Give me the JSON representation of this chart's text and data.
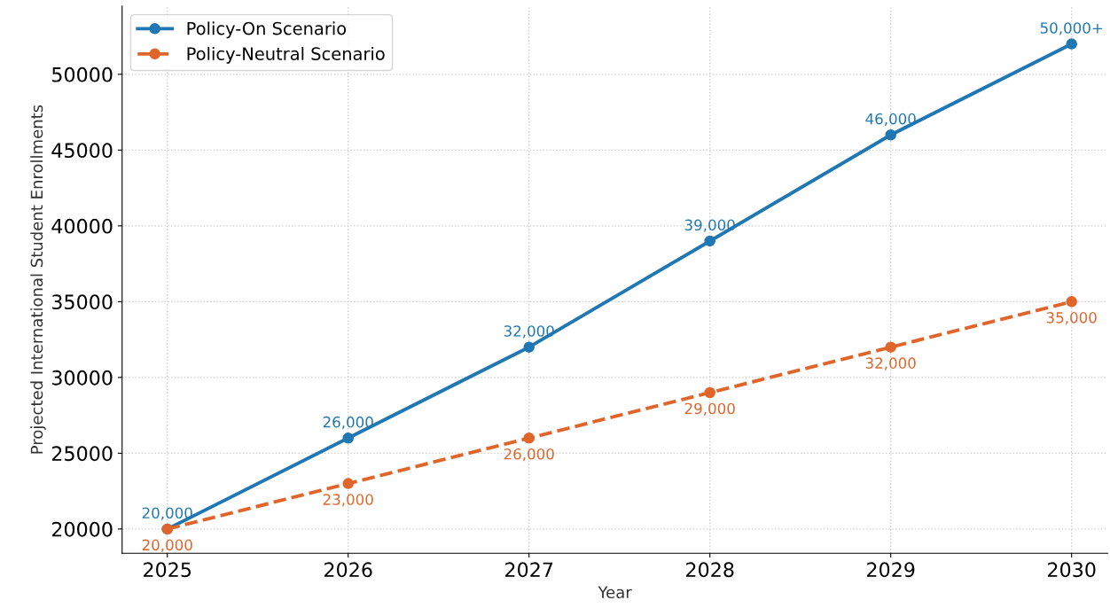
{
  "chart_data": {
    "type": "line",
    "xlabel": "Year",
    "ylabel": "Projected International Student Enrollments",
    "x": [
      2025,
      2026,
      2027,
      2028,
      2029,
      2030
    ],
    "series": [
      {
        "name": "Policy-On Scenario",
        "color": "#1f77b4",
        "values": [
          20000,
          26000,
          32000,
          39000,
          46000,
          52000
        ],
        "value_labels": [
          "20,000",
          "26,000",
          "32,000",
          "39,000",
          "46,000",
          "50,000+"
        ],
        "line_style": "solid"
      },
      {
        "name": "Policy-Neutral Scenario",
        "color": "#e0652b",
        "values": [
          20000,
          23000,
          26000,
          29000,
          32000,
          35000
        ],
        "value_labels": [
          "20,000",
          "23,000",
          "26,000",
          "29,000",
          "32,000",
          "35,000"
        ],
        "line_style": "dashed"
      }
    ],
    "xlim": [
      2024.75,
      2030.2
    ],
    "xticks": [
      2025,
      2026,
      2027,
      2028,
      2029,
      2030
    ],
    "ylim": [
      18400,
      54500
    ],
    "yticks": [
      20000,
      25000,
      30000,
      35000,
      40000,
      45000,
      50000
    ],
    "grid": true,
    "legend": "top left",
    "marker": "circle"
  }
}
